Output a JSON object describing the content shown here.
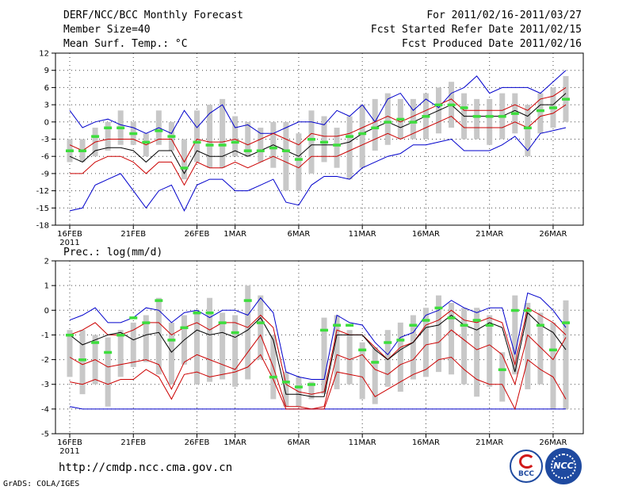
{
  "header": {
    "title": "DERF/NCC/BCC Monthly Forecast",
    "member_size": "Member Size=40",
    "variable": "Mean Surf. Temp.: °C",
    "period": "For 2011/02/16-2011/03/27",
    "fcst_started": "Fcst Started Refer Date 2011/02/15",
    "fcst_produced": "Fcst Produced Date 2011/02/16"
  },
  "chart_data": [
    {
      "type": "line",
      "title": "Mean Surf. Temp.: °C",
      "ylim": [
        -18,
        12
      ],
      "y_ticks": [
        "12",
        "9",
        "6",
        "3",
        "0",
        "-3",
        "-6",
        "-9",
        "-12",
        "-15",
        "-18"
      ],
      "x_tick_labels": [
        "16FEB",
        "21FEB",
        "26FEB",
        "1MAR",
        "6MAR",
        "11MAR",
        "16MAR",
        "21MAR",
        "26MAR"
      ],
      "x_tick_days": [
        0,
        5,
        10,
        13,
        18,
        23,
        28,
        33,
        38
      ],
      "x_year_label": "2011",
      "days": 40,
      "series": [
        {
          "name": "max",
          "color": "#0000cc",
          "values": [
            2,
            -1,
            0,
            0.5,
            -0.5,
            -1,
            -2,
            -1,
            -2,
            2,
            -1,
            1.5,
            3,
            -1,
            -0.5,
            -2,
            -2,
            -1,
            0,
            0,
            -0.5,
            2,
            1,
            3,
            0,
            4,
            5,
            2,
            4,
            2.5,
            5,
            6,
            8,
            5,
            6,
            6,
            6,
            5,
            7,
            9
          ]
        },
        {
          "name": "upper",
          "color": "#cc0000",
          "values": [
            -4,
            -5,
            -3.5,
            -3,
            -3,
            -3,
            -4,
            -3,
            -3,
            -7,
            -3,
            -3.5,
            -3.5,
            -3,
            -4,
            -3,
            -2,
            -3,
            -4,
            -2,
            -2.5,
            -2.5,
            -2,
            -1,
            0,
            1,
            0,
            1,
            2,
            3,
            4,
            2,
            2,
            2,
            2,
            3,
            2,
            4,
            4.5,
            6
          ]
        },
        {
          "name": "mean",
          "color": "#000000",
          "values": [
            -6,
            -7,
            -5,
            -4.5,
            -4.5,
            -5,
            -7,
            -5,
            -5,
            -9,
            -5,
            -6,
            -6,
            -5,
            -6,
            -5,
            -4,
            -5,
            -6,
            -4,
            -4,
            -4,
            -3.5,
            -2,
            -1,
            0,
            -1,
            0,
            1,
            2,
            3,
            1,
            1,
            1,
            1,
            2,
            1,
            3,
            3,
            5
          ]
        },
        {
          "name": "lower",
          "color": "#cc0000",
          "values": [
            -9,
            -9,
            -7,
            -6,
            -6,
            -7,
            -9,
            -7,
            -7,
            -11,
            -7,
            -8,
            -8,
            -7,
            -8,
            -7,
            -6,
            -7,
            -8,
            -6,
            -6,
            -6,
            -5,
            -4,
            -3,
            -2,
            -3,
            -2,
            -1,
            0,
            1,
            -1,
            -1,
            -1,
            -1,
            0,
            -1,
            1,
            1.5,
            3
          ]
        },
        {
          "name": "min",
          "color": "#0000cc",
          "values": [
            -15.5,
            -15,
            -11,
            -10,
            -9,
            -12,
            -15,
            -12,
            -11,
            -15.5,
            -11,
            -10,
            -10,
            -12,
            -12,
            -11,
            -10,
            -14,
            -14.5,
            -11,
            -9.5,
            -9.5,
            -10,
            -8,
            -7,
            -6,
            -5.5,
            -4,
            -4,
            -3.5,
            -3,
            -5,
            -5,
            -5,
            -4,
            -2.5,
            -5,
            -2,
            -1.5,
            -1
          ]
        }
      ],
      "green_bars": [
        -5,
        -5,
        -2.5,
        -1,
        -1,
        -2,
        -3.5,
        -1.5,
        -2.5,
        -8,
        -3.5,
        -4,
        -4,
        -3.5,
        -5,
        -5,
        -4.5,
        -5,
        -6.5,
        -3,
        -3.5,
        -4,
        -2.5,
        -2,
        -1,
        0,
        0.5,
        0,
        1,
        3,
        3,
        2.5,
        1,
        1,
        1,
        1.5,
        -1,
        2,
        2.5,
        4
      ],
      "gray_bars": [
        [
          -7,
          -3
        ],
        [
          -7,
          -3
        ],
        [
          -6,
          -1
        ],
        [
          -5,
          0
        ],
        [
          -4,
          2
        ],
        [
          -4,
          0
        ],
        [
          -6,
          -2
        ],
        [
          -4,
          2
        ],
        [
          -5,
          0
        ],
        [
          -10,
          -3
        ],
        [
          -7,
          2
        ],
        [
          -8,
          3
        ],
        [
          -8,
          4
        ],
        [
          -6,
          1
        ],
        [
          -6,
          0
        ],
        [
          -7,
          -1
        ],
        [
          -8,
          0
        ],
        [
          -12,
          0
        ],
        [
          -12,
          -2
        ],
        [
          -9,
          2
        ],
        [
          -7,
          1
        ],
        [
          -8,
          -1
        ],
        [
          -10,
          1
        ],
        [
          -8,
          3
        ],
        [
          -5,
          4
        ],
        [
          -4,
          5
        ],
        [
          -3,
          4
        ],
        [
          -3,
          4
        ],
        [
          -3,
          5
        ],
        [
          -2,
          6
        ],
        [
          -1,
          7
        ],
        [
          -3,
          5
        ],
        [
          -3,
          4
        ],
        [
          -4,
          4
        ],
        [
          -3,
          5
        ],
        [
          -2,
          5
        ],
        [
          -6,
          3
        ],
        [
          -2,
          5
        ],
        [
          -1,
          6
        ],
        [
          0,
          8
        ]
      ]
    },
    {
      "type": "line",
      "title": "Prec.: log(mm/d)",
      "ylim": [
        -5,
        2
      ],
      "y_ticks": [
        "2",
        "1",
        "0",
        "-1",
        "-2",
        "-3",
        "-4",
        "-5"
      ],
      "x_tick_labels": [
        "16FEB",
        "21FEB",
        "26FEB",
        "1MAR",
        "6MAR",
        "11MAR",
        "16MAR",
        "21MAR",
        "26MAR"
      ],
      "x_tick_days": [
        0,
        5,
        10,
        13,
        18,
        23,
        28,
        33,
        38
      ],
      "x_year_label": "2011",
      "days": 40,
      "series": [
        {
          "name": "max",
          "color": "#0000cc",
          "values": [
            -0.4,
            -0.2,
            0.1,
            -0.5,
            -0.5,
            -0.3,
            0.1,
            0,
            -0.5,
            -0.1,
            0,
            -0.3,
            0,
            0,
            -0.2,
            0.5,
            -0.1,
            -2.5,
            -2.7,
            -2.8,
            -2.8,
            -0.2,
            -0.5,
            -0.6,
            -1.3,
            -1.8,
            -1.1,
            -0.9,
            -0.2,
            0,
            0.4,
            0.1,
            -0.1,
            0.1,
            0.1,
            -1.8,
            0.7,
            0.5,
            0,
            -0.7
          ]
        },
        {
          "name": "upper",
          "color": "#cc0000",
          "values": [
            -1,
            -0.8,
            -0.5,
            -1,
            -1,
            -0.8,
            -0.5,
            -0.5,
            -1,
            -0.7,
            -0.5,
            -0.8,
            -0.5,
            -0.5,
            -0.7,
            -0.2,
            -0.7,
            -3,
            -3.3,
            -3.4,
            -3.3,
            -0.8,
            -1,
            -1,
            -1.5,
            -2,
            -1.5,
            -1.3,
            -0.6,
            -0.4,
            0,
            -0.4,
            -0.5,
            -0.3,
            -0.5,
            -2.2,
            0.1,
            -0.2,
            -0.5,
            -1
          ]
        },
        {
          "name": "mean",
          "color": "#000000",
          "values": [
            -1,
            -1.4,
            -1.2,
            -1,
            -0.9,
            -1.2,
            -1,
            -0.9,
            -1.7,
            -1.2,
            -0.8,
            -1,
            -0.9,
            -1.1,
            -0.8,
            -0.3,
            -1.2,
            -3.4,
            -3.4,
            -3.5,
            -3.5,
            -1,
            -1,
            -1,
            -1.6,
            -2,
            -1.6,
            -1.3,
            -0.7,
            -0.6,
            -0.2,
            -0.6,
            -0.8,
            -0.5,
            -0.7,
            -2.5,
            -0.1,
            -0.6,
            -0.9,
            -1.6
          ]
        },
        {
          "name": "lower",
          "color": "#cc0000",
          "values": [
            -1.9,
            -2.2,
            -2,
            -2.3,
            -2.2,
            -2.1,
            -2,
            -2.2,
            -3.2,
            -2.1,
            -1.8,
            -2,
            -2.2,
            -2.4,
            -1.7,
            -1,
            -2.3,
            -3.9,
            -3.9,
            -4,
            -3.9,
            -1.8,
            -2,
            -1.8,
            -2.4,
            -2.6,
            -2.2,
            -2,
            -1.4,
            -1.3,
            -0.8,
            -1.2,
            -1.6,
            -1.4,
            -1.8,
            -3,
            -1,
            -1.5,
            -2,
            -1.1
          ]
        },
        {
          "name": "min",
          "color": "#0000cc",
          "values": [
            -3.9,
            -4,
            -4,
            -4,
            -4,
            -4,
            -4,
            -4,
            -4,
            -4,
            -4,
            -4,
            -4,
            -4,
            -4,
            -4,
            -4,
            -4,
            -4,
            -4,
            -4,
            -4,
            -4,
            -4,
            -4,
            -4,
            -4,
            -4,
            -4,
            -4,
            -4,
            -4,
            -4,
            -4,
            -4,
            -4,
            -4,
            -4,
            -4,
            -4
          ]
        },
        {
          "name": "lower2",
          "color": "#cc0000",
          "values": [
            -2.9,
            -3,
            -2.8,
            -3,
            -2.8,
            -2.8,
            -2.4,
            -2.7,
            -3.6,
            -2.6,
            -2.5,
            -2.7,
            -2.6,
            -2.5,
            -2.3,
            -1.8,
            -2.8,
            -4,
            -4,
            -4,
            -4,
            -2.5,
            -2.6,
            -2.7,
            -3.5,
            -3.2,
            -2.9,
            -2.6,
            -2.4,
            -2,
            -1.9,
            -2.4,
            -2.8,
            -3,
            -3,
            -4,
            -2,
            -2.4,
            -2.7,
            -3.6
          ]
        }
      ],
      "green_bars": [
        -1,
        -2,
        -1.3,
        -1.7,
        -1,
        -0.3,
        -0.5,
        0.4,
        -1.2,
        -0.7,
        -0.1,
        -0.1,
        -0.5,
        -0.9,
        0.4,
        -0.5,
        -2.7,
        -2.9,
        -3.1,
        -3,
        -0.8,
        -0.6,
        -0.6,
        -1.6,
        -2.1,
        -1.3,
        -1.2,
        -0.6,
        -0.4,
        0.1,
        -0.3,
        -0.6,
        -0.4,
        -0.6,
        -2.4,
        0,
        0,
        -0.6,
        -1.6,
        -0.5
      ],
      "gray_bars": [
        [
          -2.7,
          -0.8
        ],
        [
          -3.4,
          -0.8
        ],
        [
          -3,
          -1
        ],
        [
          -3.9,
          -1.1
        ],
        [
          -2.7,
          -0.8
        ],
        [
          -2.3,
          -0.5
        ],
        [
          -2.1,
          -0.2
        ],
        [
          -2.6,
          0.5
        ],
        [
          -3,
          -0.5
        ],
        [
          -2.2,
          -0.2
        ],
        [
          -3,
          0
        ],
        [
          -2.9,
          0.5
        ],
        [
          -2.8,
          -0.1
        ],
        [
          -3.1,
          -0.2
        ],
        [
          -2.8,
          1
        ],
        [
          -2,
          0.6
        ],
        [
          -3.6,
          -1
        ],
        [
          -3.9,
          -2.5
        ],
        [
          -3.9,
          -2.7
        ],
        [
          -3.6,
          -2.9
        ],
        [
          -3.4,
          -0.3
        ],
        [
          -3.2,
          -0.2
        ],
        [
          -3,
          -0.8
        ],
        [
          -3.6,
          -1.3
        ],
        [
          -3.8,
          -1.5
        ],
        [
          -3.1,
          -0.8
        ],
        [
          -3.3,
          -0.5
        ],
        [
          -2.8,
          -0.2
        ],
        [
          -2.7,
          0.1
        ],
        [
          -2.5,
          0.6
        ],
        [
          -2.6,
          0.3
        ],
        [
          -3,
          0.1
        ],
        [
          -3.5,
          0.1
        ],
        [
          -3.1,
          -0.2
        ],
        [
          -3.7,
          -1.7
        ],
        [
          -2.6,
          0.6
        ],
        [
          -3.2,
          0.3
        ],
        [
          -3,
          -0.1
        ],
        [
          -4,
          -0.5
        ],
        [
          -4,
          0.4
        ]
      ]
    }
  ],
  "precip_label": "Prec.: log(mm/d)",
  "footer": {
    "url": "http://cmdp.ncc.cma.gov.cn",
    "grads": "GrADS: COLA/IGES",
    "logo_bcc": "BCC",
    "logo_ncc": "NCC"
  }
}
